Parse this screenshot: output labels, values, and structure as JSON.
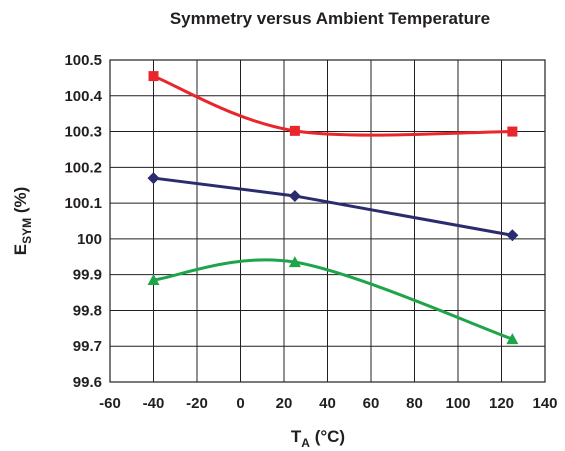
{
  "chart_data": {
    "type": "line",
    "title": "Symmetry versus Ambient Temperature",
    "xlabel": {
      "main": "T",
      "sub": "A",
      "rest": " (°C)"
    },
    "ylabel": {
      "main": "E",
      "sub": "SYM",
      "rest": " (%)"
    },
    "xlim": [
      -60,
      140
    ],
    "ylim": [
      99.6,
      100.5
    ],
    "x_ticks": [
      "-60",
      "-40",
      "-20",
      "0",
      "20",
      "40",
      "60",
      "80",
      "100",
      "120",
      "140"
    ],
    "y_ticks": [
      "100.5",
      "100.4",
      "100.3",
      "100.2",
      "100.1",
      "100",
      "99.9",
      "99.8",
      "99.7",
      "99.6"
    ],
    "grid": true,
    "series": [
      {
        "color": "#e8262b",
        "marker": "square",
        "smooth": true,
        "x": [
          -40,
          25,
          125
        ],
        "y": [
          100.455,
          100.302,
          100.3
        ]
      },
      {
        "color": "#2b2c6e",
        "marker": "diamond",
        "smooth": false,
        "x": [
          -40,
          25,
          125
        ],
        "y": [
          100.17,
          100.12,
          100.01
        ]
      },
      {
        "color": "#1ea54a",
        "marker": "triangle",
        "smooth": true,
        "x": [
          -40,
          25,
          125
        ],
        "y": [
          99.885,
          99.935,
          99.72
        ]
      }
    ]
  }
}
